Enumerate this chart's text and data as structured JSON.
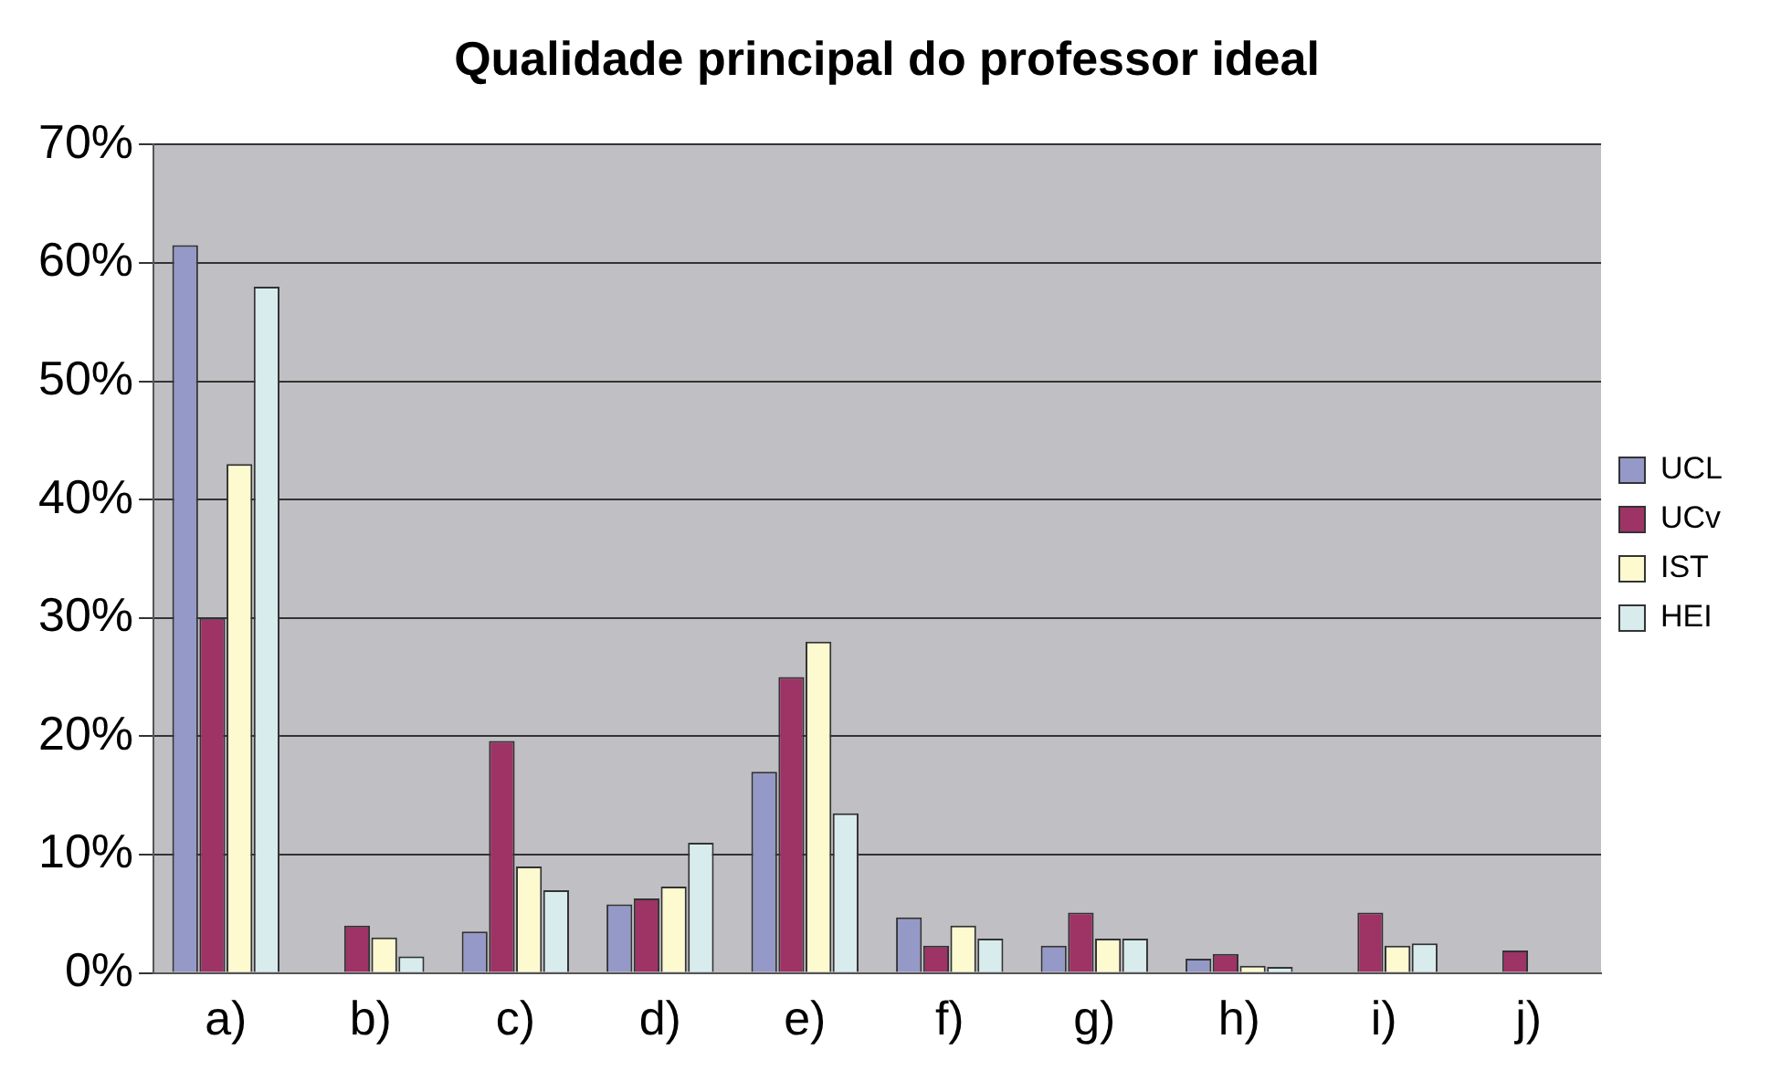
{
  "chart_data": {
    "type": "bar",
    "title": "Qualidade principal do professor ideal",
    "categories": [
      "a)",
      "b)",
      "c)",
      "d)",
      "e)",
      "f)",
      "g)",
      "h)",
      "i)",
      "j)"
    ],
    "series": [
      {
        "name": "UCL",
        "color": "#9499c8",
        "values": [
          61.5,
          0,
          3.5,
          5.8,
          17,
          4.7,
          2.3,
          1.2,
          0,
          0
        ]
      },
      {
        "name": "UCv",
        "color": "#9e3366",
        "values": [
          30,
          4,
          19.6,
          6.3,
          25,
          2.3,
          5.1,
          1.6,
          5.1,
          1.9
        ]
      },
      {
        "name": "IST",
        "color": "#fdfad0",
        "values": [
          43,
          3,
          9,
          7.3,
          28,
          4,
          2.9,
          0.6,
          2.3,
          0
        ]
      },
      {
        "name": "HEI",
        "color": "#d8ecee",
        "values": [
          58,
          1.4,
          7,
          11,
          13.5,
          2.9,
          2.9,
          0.5,
          2.5,
          0
        ]
      }
    ],
    "ylim": [
      0,
      70
    ],
    "yticks": [
      {
        "value": 0,
        "label": "0%"
      },
      {
        "value": 10,
        "label": "10%"
      },
      {
        "value": 20,
        "label": "20%"
      },
      {
        "value": 30,
        "label": "30%"
      },
      {
        "value": 40,
        "label": "40%"
      },
      {
        "value": 50,
        "label": "50%"
      },
      {
        "value": 60,
        "label": "60%"
      },
      {
        "value": 70,
        "label": "70%"
      }
    ],
    "grid": "y",
    "legend": "right"
  }
}
